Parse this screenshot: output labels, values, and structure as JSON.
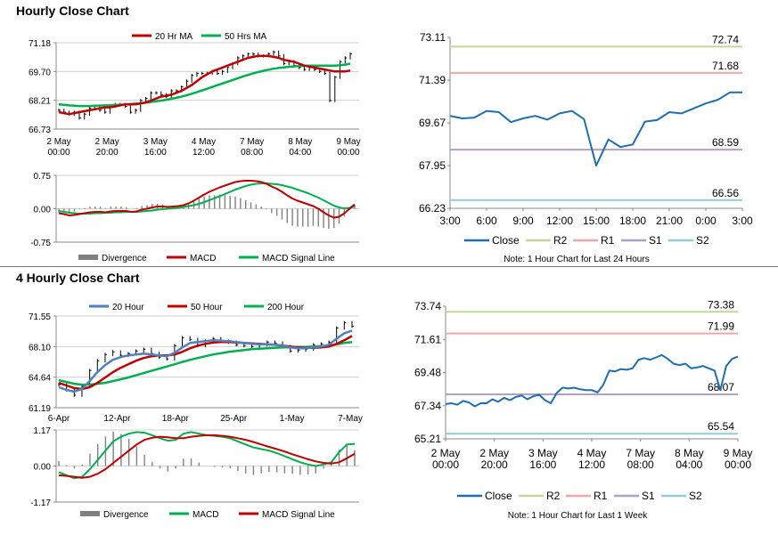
{
  "sections": {
    "hourly_title": "Hourly Close Chart",
    "four_hourly_title": "4 Hourly Close Chart"
  },
  "colors": {
    "ma_red": "#c00000",
    "ma_green": "#00b050",
    "ma_blue": "#4f81bd",
    "price": "#000000",
    "close_line": "#1f6eb0",
    "r2": "#c3d69b",
    "r1": "#f2a7a7",
    "s1": "#b1a0c7",
    "s2": "#93cddd",
    "divergence": "#808080",
    "grid": "#d0d0d0"
  },
  "chart_data": [
    {
      "id": "hourly_price",
      "type": "line",
      "legend": [
        "20 Hr MA",
        "50 Hrs MA"
      ],
      "yticks": [
        "71.18",
        "69.70",
        "68.21",
        "66.73"
      ],
      "ylim": [
        66.73,
        71.18
      ],
      "xticks": [
        [
          "2 May",
          "00:00"
        ],
        [
          "2 May",
          "20:00"
        ],
        [
          "3 May",
          "16:00"
        ],
        [
          "4 May",
          "12:00"
        ],
        [
          "7 May",
          "08:00"
        ],
        [
          "8 May",
          "04:00"
        ],
        [
          "9 May",
          "00:00"
        ]
      ],
      "price": [
        67.7,
        67.6,
        67.5,
        67.6,
        67.3,
        67.5,
        67.8,
        67.9,
        67.7,
        67.6,
        67.9,
        68.0,
        68.0,
        67.9,
        67.6,
        67.7,
        68.2,
        68.3,
        68.6,
        68.6,
        68.5,
        68.4,
        68.7,
        68.7,
        68.9,
        69.2,
        69.5,
        69.6,
        69.6,
        69.6,
        69.7,
        69.6,
        69.7,
        69.9,
        70.1,
        70.4,
        70.5,
        70.6,
        70.6,
        70.5,
        70.5,
        70.6,
        70.7,
        70.5,
        70.1,
        70.2,
        70.0,
        69.9,
        69.8,
        69.9,
        69.8,
        69.7,
        69.6,
        68.2,
        69.4,
        70.2,
        70.4,
        70.6
      ],
      "ma20": [
        67.6,
        67.55,
        67.5,
        67.55,
        67.6,
        67.65,
        67.7,
        67.75,
        67.8,
        67.85,
        67.85,
        67.9,
        67.95,
        68.0,
        68.0,
        68.0,
        68.05,
        68.1,
        68.2,
        68.3,
        68.4,
        68.45,
        68.5,
        68.6,
        68.7,
        68.85,
        69.0,
        69.2,
        69.4,
        69.55,
        69.7,
        69.8,
        69.9,
        70.0,
        70.1,
        70.2,
        70.3,
        70.4,
        70.45,
        70.5,
        70.5,
        70.5,
        70.45,
        70.4,
        70.3,
        70.25,
        70.2,
        70.1,
        70.0,
        69.95,
        69.9,
        69.85,
        69.8,
        69.75,
        69.7,
        69.7,
        69.7,
        69.75
      ],
      "ma50": [
        68.0,
        67.98,
        67.95,
        67.93,
        67.92,
        67.92,
        67.92,
        67.93,
        67.94,
        67.95,
        67.96,
        67.97,
        67.98,
        68.0,
        68.02,
        68.04,
        68.06,
        68.09,
        68.12,
        68.16,
        68.2,
        68.24,
        68.29,
        68.34,
        68.4,
        68.47,
        68.55,
        68.63,
        68.72,
        68.81,
        68.9,
        68.99,
        69.08,
        69.17,
        69.26,
        69.35,
        69.44,
        69.52,
        69.6,
        69.67,
        69.73,
        69.79,
        69.84,
        69.88,
        69.91,
        69.94,
        69.96,
        69.98,
        69.99,
        70.0,
        70.0,
        70.0,
        70.0,
        70.0,
        70.0,
        70.02,
        70.05,
        70.1
      ]
    },
    {
      "id": "hourly_macd",
      "type": "line",
      "legend": [
        "Divergence",
        "MACD",
        "MACD Signal Line"
      ],
      "yticks": [
        "0.75",
        "0.00",
        "-0.75"
      ],
      "ylim": [
        -0.75,
        0.75
      ],
      "macd": [
        -0.1,
        -0.12,
        -0.15,
        -0.14,
        -0.12,
        -0.1,
        -0.08,
        -0.07,
        -0.07,
        -0.08,
        -0.06,
        -0.05,
        -0.05,
        -0.05,
        -0.07,
        -0.06,
        -0.02,
        0.0,
        0.03,
        0.05,
        0.05,
        0.04,
        0.05,
        0.06,
        0.08,
        0.12,
        0.18,
        0.25,
        0.32,
        0.38,
        0.43,
        0.48,
        0.52,
        0.56,
        0.6,
        0.62,
        0.63,
        0.63,
        0.62,
        0.6,
        0.56,
        0.5,
        0.45,
        0.38,
        0.3,
        0.23,
        0.18,
        0.14,
        0.1,
        0.06,
        0.0,
        -0.08,
        -0.15,
        -0.2,
        -0.18,
        -0.1,
        0.0,
        0.1
      ],
      "signal": [
        -0.05,
        -0.07,
        -0.09,
        -0.1,
        -0.11,
        -0.11,
        -0.11,
        -0.1,
        -0.1,
        -0.09,
        -0.09,
        -0.08,
        -0.08,
        -0.07,
        -0.07,
        -0.07,
        -0.06,
        -0.05,
        -0.04,
        -0.02,
        -0.01,
        0.0,
        0.01,
        0.02,
        0.04,
        0.06,
        0.08,
        0.11,
        0.15,
        0.19,
        0.24,
        0.28,
        0.33,
        0.38,
        0.43,
        0.47,
        0.51,
        0.54,
        0.56,
        0.57,
        0.57,
        0.56,
        0.55,
        0.53,
        0.5,
        0.47,
        0.43,
        0.39,
        0.35,
        0.3,
        0.25,
        0.19,
        0.13,
        0.07,
        0.03,
        0.01,
        0.02,
        0.05
      ]
    },
    {
      "id": "hourly_pivot",
      "type": "line",
      "note": "Note: 1 Hour Chart for Last 24 Hours",
      "legend": [
        "Close",
        "R2",
        "R1",
        "S1",
        "S2"
      ],
      "yticks": [
        "73.11",
        "71.39",
        "69.67",
        "67.95",
        "66.23"
      ],
      "ylim": [
        66.23,
        73.11
      ],
      "xticks": [
        "3:00",
        "6:00",
        "9:00",
        "12:00",
        "15:00",
        "18:00",
        "21:00",
        "0:00",
        "3:00"
      ],
      "levels": {
        "R2": "72.74",
        "R1": "71.68",
        "S1": "68.59",
        "S2": "66.56"
      },
      "close": [
        69.95,
        69.85,
        69.88,
        70.15,
        70.1,
        69.7,
        69.85,
        69.95,
        69.8,
        70.05,
        70.15,
        69.82,
        67.95,
        69.0,
        68.7,
        68.8,
        69.72,
        69.78,
        70.1,
        70.05,
        70.25,
        70.45,
        70.6,
        70.9,
        70.9
      ]
    },
    {
      "id": "four_hourly_price",
      "type": "line",
      "legend": [
        "20 Hour",
        "50 Hour",
        "200 Hour"
      ],
      "yticks": [
        "71.55",
        "68.10",
        "64.64",
        "61.19"
      ],
      "ylim": [
        61.19,
        71.55
      ],
      "xticks": [
        "6-Apr",
        "12-Apr",
        "18-Apr",
        "25-Apr",
        "1-May",
        "7-May"
      ],
      "price": [
        63.8,
        63.2,
        62.6,
        63.6,
        65.4,
        66.5,
        67.2,
        67.5,
        67.1,
        67.3,
        67.6,
        67.8,
        67.3,
        66.9,
        66.7,
        68.2,
        69.1,
        68.9,
        68.2,
        68.7,
        69.0,
        68.7,
        68.6,
        68.3,
        68.2,
        68.1,
        68.3,
        68.6,
        68.5,
        68.1,
        67.6,
        67.7,
        67.8,
        68.3,
        68.4,
        68.6,
        70.2,
        70.8,
        70.4
      ],
      "ma20": [
        63.5,
        63.2,
        63.0,
        63.3,
        64.2,
        65.2,
        66.0,
        66.6,
        66.9,
        67.1,
        67.2,
        67.3,
        67.2,
        67.1,
        67.0,
        67.4,
        68.0,
        68.5,
        68.6,
        68.7,
        68.8,
        68.75,
        68.7,
        68.6,
        68.5,
        68.4,
        68.35,
        68.35,
        68.3,
        68.2,
        68.0,
        67.9,
        67.9,
        68.0,
        68.1,
        68.3,
        69.0,
        69.6,
        69.9
      ],
      "ma50": [
        64.0,
        63.7,
        63.4,
        63.3,
        63.5,
        64.0,
        64.6,
        65.2,
        65.7,
        66.1,
        66.5,
        66.8,
        67.0,
        67.1,
        67.1,
        67.2,
        67.5,
        67.9,
        68.2,
        68.4,
        68.55,
        68.6,
        68.6,
        68.55,
        68.5,
        68.45,
        68.4,
        68.35,
        68.3,
        68.2,
        68.1,
        68.0,
        67.95,
        67.95,
        68.0,
        68.1,
        68.4,
        68.8,
        69.3
      ],
      "ma200": [
        64.3,
        64.1,
        63.9,
        63.8,
        63.8,
        63.9,
        64.0,
        64.2,
        64.4,
        64.6,
        64.85,
        65.1,
        65.35,
        65.6,
        65.85,
        66.1,
        66.35,
        66.6,
        66.8,
        67.0,
        67.2,
        67.35,
        67.5,
        67.6,
        67.7,
        67.8,
        67.85,
        67.9,
        67.95,
        68.0,
        68.0,
        68.05,
        68.05,
        68.1,
        68.15,
        68.2,
        68.35,
        68.5,
        68.6
      ]
    },
    {
      "id": "four_hourly_macd",
      "type": "line",
      "legend": [
        "Divergence",
        "MACD",
        "MACD Signal Line"
      ],
      "yticks": [
        "1.17",
        "0.00",
        "-1.17"
      ],
      "ylim": [
        -1.17,
        1.17
      ],
      "macd": [
        -0.2,
        -0.3,
        -0.4,
        -0.35,
        -0.1,
        0.2,
        0.5,
        0.8,
        0.95,
        1.05,
        1.1,
        1.08,
        1.0,
        0.9,
        0.82,
        0.85,
        1.05,
        1.1,
        1.05,
        1.0,
        0.98,
        0.95,
        0.9,
        0.8,
        0.7,
        0.6,
        0.55,
        0.5,
        0.42,
        0.32,
        0.22,
        0.12,
        0.05,
        0.0,
        0.05,
        0.12,
        0.45,
        0.7,
        0.72
      ],
      "signal": [
        -0.3,
        -0.32,
        -0.35,
        -0.38,
        -0.35,
        -0.25,
        -0.1,
        0.1,
        0.3,
        0.5,
        0.7,
        0.85,
        0.92,
        0.95,
        0.93,
        0.9,
        0.9,
        0.95,
        0.98,
        1.0,
        1.0,
        0.98,
        0.95,
        0.9,
        0.85,
        0.78,
        0.7,
        0.62,
        0.55,
        0.47,
        0.38,
        0.3,
        0.22,
        0.15,
        0.1,
        0.08,
        0.12,
        0.25,
        0.4
      ]
    },
    {
      "id": "four_hourly_pivot",
      "type": "line",
      "note": "Note: 1 Hour Chart for Last 1 Week",
      "legend": [
        "Close",
        "R2",
        "R1",
        "S1",
        "S2"
      ],
      "yticks": [
        "73.74",
        "71.61",
        "69.48",
        "67.34",
        "65.21"
      ],
      "ylim": [
        65.21,
        73.74
      ],
      "xticks": [
        [
          "2 May",
          "00:00"
        ],
        [
          "2 May",
          "20:00"
        ],
        [
          "3 May",
          "16:00"
        ],
        [
          "4 May",
          "12:00"
        ],
        [
          "7 May",
          "08:00"
        ],
        [
          "8 May",
          "04:00"
        ],
        [
          "9 May",
          "00:00"
        ]
      ],
      "levels": {
        "R2": "73.38",
        "R1": "71.99",
        "S1": "68.07",
        "S2": "65.54"
      },
      "close": [
        67.45,
        67.5,
        67.4,
        67.65,
        67.55,
        67.3,
        67.5,
        67.5,
        67.75,
        67.6,
        67.85,
        67.7,
        67.9,
        68.0,
        67.75,
        67.95,
        68.05,
        67.7,
        67.5,
        68.15,
        68.5,
        68.45,
        68.5,
        68.4,
        68.35,
        68.35,
        68.2,
        68.7,
        69.6,
        69.55,
        69.7,
        69.65,
        69.75,
        70.3,
        70.4,
        70.3,
        70.45,
        70.6,
        70.35,
        70.05,
        69.95,
        70.05,
        69.75,
        69.8,
        69.9,
        69.75,
        69.6,
        68.35,
        69.9,
        70.35,
        70.5
      ]
    }
  ]
}
